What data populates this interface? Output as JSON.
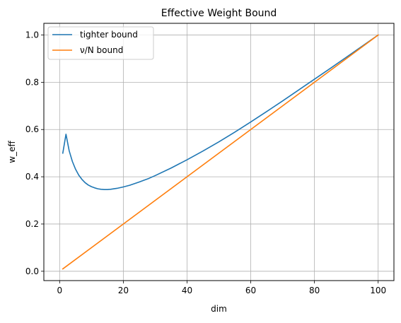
{
  "chart_data": {
    "type": "line",
    "title": "Effective Weight Bound",
    "xlabel": "dim",
    "ylabel": "w_eff",
    "xlim": [
      -4.95,
      104.95
    ],
    "ylim": [
      -0.0395,
      1.0495
    ],
    "xticks": [
      0,
      20,
      40,
      60,
      80,
      100
    ],
    "xtick_labels": [
      "0",
      "20",
      "40",
      "60",
      "80",
      "100"
    ],
    "yticks": [
      0.0,
      0.2,
      0.4,
      0.6,
      0.8,
      1.0
    ],
    "ytick_labels": [
      "0.0",
      "0.2",
      "0.4",
      "0.6",
      "0.8",
      "1.0"
    ],
    "grid": true,
    "legend_position": "upper-left",
    "series": [
      {
        "name": "tighter bound",
        "color": "#1f77b4",
        "x": [
          1,
          2,
          3,
          4,
          5,
          6,
          7,
          8,
          9,
          10,
          11,
          12,
          13,
          14,
          15,
          16,
          18,
          20,
          22,
          25,
          28,
          30,
          35,
          40,
          45,
          50,
          55,
          60,
          65,
          70,
          75,
          80,
          85,
          90,
          95,
          100
        ],
        "y": [
          0.5,
          0.58,
          0.51,
          0.465,
          0.432,
          0.407,
          0.389,
          0.375,
          0.365,
          0.358,
          0.353,
          0.349,
          0.347,
          0.346,
          0.346,
          0.347,
          0.351,
          0.357,
          0.364,
          0.378,
          0.393,
          0.405,
          0.437,
          0.472,
          0.509,
          0.548,
          0.589,
          0.632,
          0.676,
          0.721,
          0.767,
          0.813,
          0.859,
          0.906,
          0.953,
          1.0
        ]
      },
      {
        "name": "ν/N bound",
        "color": "#ff7f0e",
        "x": [
          1,
          100
        ],
        "y": [
          0.01,
          1.0
        ]
      }
    ]
  }
}
